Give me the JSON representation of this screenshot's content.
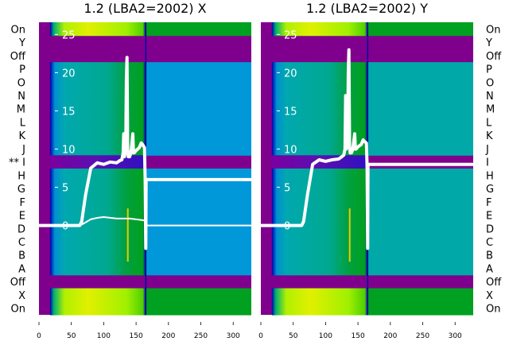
{
  "chart_data": [
    {
      "type": "heatmap",
      "title": "1.2 (LBA2=2002) X",
      "row_labels": [
        "On",
        "Y",
        "Off",
        "P",
        "O",
        "N",
        "M",
        "L",
        "K",
        "J",
        "** I",
        "H",
        "G",
        "F",
        "E",
        "D",
        "C",
        "B",
        "A",
        "Off",
        "X",
        "On"
      ],
      "xticks": [
        "0",
        "50",
        "100",
        "150",
        "200",
        "250",
        "300"
      ],
      "xtick_values": [
        0,
        50,
        100,
        150,
        200,
        250,
        300
      ],
      "yticks": [
        "0",
        "5",
        "10",
        "15",
        "20",
        "25"
      ],
      "ytick_values": [
        0,
        5,
        10,
        15,
        20,
        25
      ],
      "xlim": [
        0,
        328
      ],
      "ylim": [
        -11.7,
        26.6
      ],
      "after_color": "#0098d8",
      "series": [
        {
          "name": "thick",
          "x": [
            0,
            63,
            66,
            72,
            80,
            90,
            100,
            110,
            120,
            125,
            128,
            130,
            131,
            132,
            134,
            135,
            136,
            137,
            138,
            140,
            142,
            145,
            146,
            147,
            150,
            155,
            158,
            160,
            163,
            164,
            165,
            165.5,
            166,
            170,
            200,
            250,
            300,
            328
          ],
          "y": [
            0,
            0,
            0.5,
            4,
            7.5,
            8.2,
            8.0,
            8.3,
            8.2,
            8.5,
            8.6,
            9.5,
            12,
            9,
            10,
            19,
            22,
            10,
            9,
            9,
            9.5,
            12,
            9.5,
            9.5,
            9.8,
            10.2,
            10.8,
            10.6,
            10.2,
            6,
            -3,
            5.8,
            6,
            6,
            6,
            6,
            6,
            6
          ]
        },
        {
          "name": "thin",
          "x": [
            0,
            63,
            70,
            80,
            90,
            100,
            120,
            140,
            160,
            165,
            166,
            200,
            300,
            328
          ],
          "y": [
            0,
            0,
            0.3,
            0.8,
            1.0,
            1.1,
            0.9,
            0.9,
            0.7,
            0.6,
            0,
            0,
            0,
            0
          ]
        }
      ]
    },
    {
      "type": "heatmap",
      "title": "1.2 (LBA2=2002) Y",
      "row_labels": [
        "On",
        "Y",
        "Off",
        "P",
        "O",
        "N",
        "M",
        "L",
        "K",
        "J",
        "I",
        "H",
        "G",
        "F",
        "E",
        "D",
        "C",
        "B",
        "A",
        "Off",
        "X",
        "On"
      ],
      "xticks": [
        "0",
        "50",
        "100",
        "150",
        "200",
        "250",
        "300"
      ],
      "xtick_values": [
        0,
        50,
        100,
        150,
        200,
        250,
        300
      ],
      "yticks": [
        "0",
        "5",
        "10",
        "15",
        "20",
        "25"
      ],
      "ytick_values": [
        0,
        5,
        10,
        15,
        20,
        25
      ],
      "xlim": [
        0,
        328
      ],
      "ylim": [
        -11.7,
        26.6
      ],
      "after_color": "#00a8a8",
      "series": [
        {
          "name": "thick",
          "x": [
            0,
            63,
            66,
            72,
            80,
            90,
            100,
            110,
            120,
            125,
            128,
            130,
            131,
            132,
            134,
            135,
            136,
            137,
            138,
            140,
            142,
            145,
            146,
            147,
            150,
            155,
            158,
            160,
            163,
            164,
            165,
            165.5,
            166,
            170,
            200,
            250,
            300,
            328
          ],
          "y": [
            0,
            0,
            0.5,
            4,
            8,
            8.6,
            8.4,
            8.6,
            8.7,
            9,
            9.2,
            10,
            17,
            10,
            10.5,
            20,
            23,
            10.5,
            9.5,
            9.5,
            10,
            12,
            10,
            10,
            10.3,
            10.6,
            11.2,
            11,
            10.8,
            8,
            -3,
            8,
            8,
            8,
            8,
            8,
            8,
            8
          ]
        }
      ]
    }
  ]
}
